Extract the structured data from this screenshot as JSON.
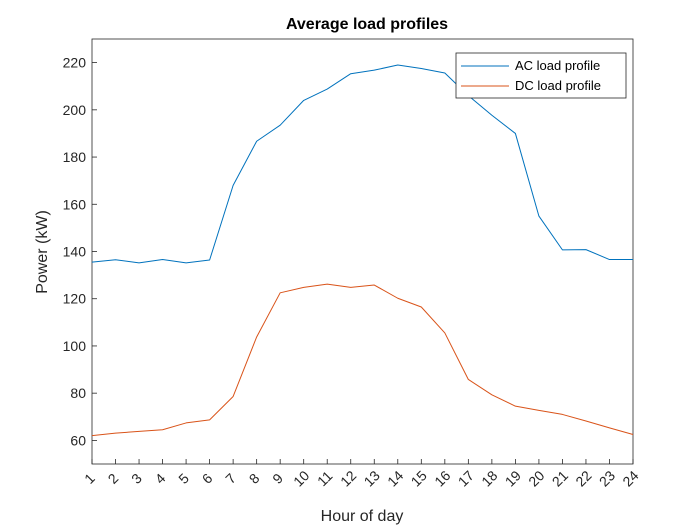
{
  "chart_data": {
    "type": "line",
    "title": "Average load profiles",
    "xlabel": "Hour of day",
    "ylabel": "Power (kW)",
    "x": [
      1,
      2,
      3,
      4,
      5,
      6,
      7,
      8,
      9,
      10,
      11,
      12,
      13,
      14,
      15,
      16,
      17,
      18,
      19,
      20,
      21,
      22,
      23,
      24
    ],
    "xlim": [
      1,
      24
    ],
    "ylim": [
      50,
      230
    ],
    "yticks": [
      60,
      80,
      100,
      120,
      140,
      160,
      180,
      200,
      220
    ],
    "grid": false,
    "legend_position": "top-right",
    "series": [
      {
        "name": "AC load profile",
        "color": "#0072BD",
        "values": [
          135.5,
          136.5,
          135.2,
          136.6,
          135.2,
          136.4,
          168,
          186.7,
          193.5,
          204,
          208.8,
          215.3,
          216.8,
          219,
          217.5,
          215.6,
          206,
          197.7,
          190,
          155,
          140.7,
          140.8,
          136.6,
          136.6
        ]
      },
      {
        "name": "DC load profile",
        "color": "#D95319",
        "values": [
          62,
          63.1,
          63.8,
          64.5,
          67.4,
          68.7,
          78.6,
          103.8,
          122.5,
          124.8,
          126.2,
          124.8,
          125.8,
          120.2,
          116.5,
          105.5,
          85.8,
          79.3,
          74.5,
          72.7,
          71,
          68.2,
          65.3,
          62.5
        ]
      }
    ]
  }
}
